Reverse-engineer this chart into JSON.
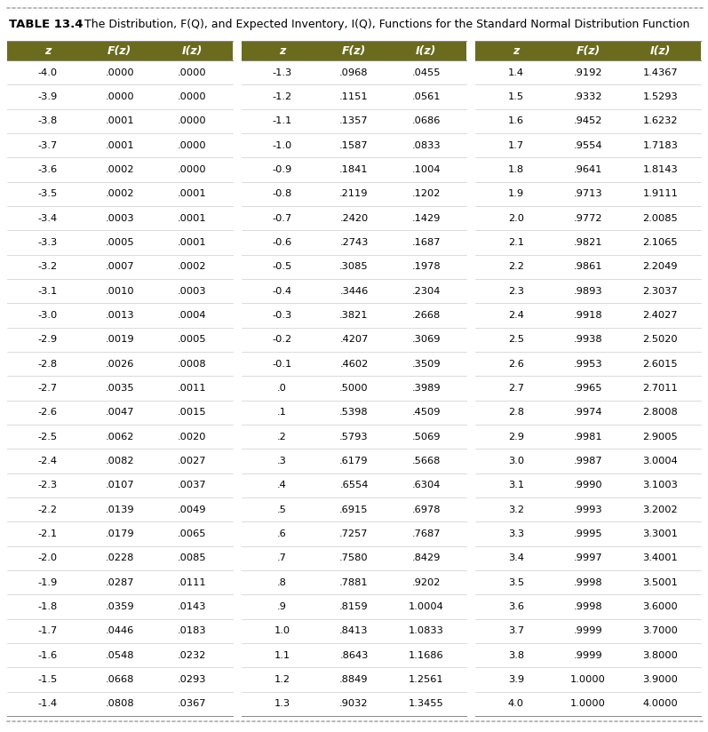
{
  "title_prefix": "TABLE 13.4",
  "title_text": "The Distribution, F(Q), and Expected Inventory, I(Q), Functions for the Standard Normal Distribution Function",
  "header_bg": "#6b6b1e",
  "header_text_color": "#ffffff",
  "col_headers": [
    "z",
    "F(z)",
    "I(z)"
  ],
  "table_data": [
    [
      [
        "-4.0",
        ".0000",
        ".0000"
      ],
      [
        "-3.9",
        ".0000",
        ".0000"
      ],
      [
        "-3.8",
        ".0001",
        ".0000"
      ],
      [
        "-3.7",
        ".0001",
        ".0000"
      ],
      [
        "-3.6",
        ".0002",
        ".0000"
      ],
      [
        "-3.5",
        ".0002",
        ".0001"
      ],
      [
        "-3.4",
        ".0003",
        ".0001"
      ],
      [
        "-3.3",
        ".0005",
        ".0001"
      ],
      [
        "-3.2",
        ".0007",
        ".0002"
      ],
      [
        "-3.1",
        ".0010",
        ".0003"
      ],
      [
        "-3.0",
        ".0013",
        ".0004"
      ],
      [
        "-2.9",
        ".0019",
        ".0005"
      ],
      [
        "-2.8",
        ".0026",
        ".0008"
      ],
      [
        "-2.7",
        ".0035",
        ".0011"
      ],
      [
        "-2.6",
        ".0047",
        ".0015"
      ],
      [
        "-2.5",
        ".0062",
        ".0020"
      ],
      [
        "-2.4",
        ".0082",
        ".0027"
      ],
      [
        "-2.3",
        ".0107",
        ".0037"
      ],
      [
        "-2.2",
        ".0139",
        ".0049"
      ],
      [
        "-2.1",
        ".0179",
        ".0065"
      ],
      [
        "-2.0",
        ".0228",
        ".0085"
      ],
      [
        "-1.9",
        ".0287",
        ".0111"
      ],
      [
        "-1.8",
        ".0359",
        ".0143"
      ],
      [
        "-1.7",
        ".0446",
        ".0183"
      ],
      [
        "-1.6",
        ".0548",
        ".0232"
      ],
      [
        "-1.5",
        ".0668",
        ".0293"
      ],
      [
        "-1.4",
        ".0808",
        ".0367"
      ]
    ],
    [
      [
        "-1.3",
        ".0968",
        ".0455"
      ],
      [
        "-1.2",
        ".1151",
        ".0561"
      ],
      [
        "-1.1",
        ".1357",
        ".0686"
      ],
      [
        "-1.0",
        ".1587",
        ".0833"
      ],
      [
        "-0.9",
        ".1841",
        ".1004"
      ],
      [
        "-0.8",
        ".2119",
        ".1202"
      ],
      [
        "-0.7",
        ".2420",
        ".1429"
      ],
      [
        "-0.6",
        ".2743",
        ".1687"
      ],
      [
        "-0.5",
        ".3085",
        ".1978"
      ],
      [
        "-0.4",
        ".3446",
        ".2304"
      ],
      [
        "-0.3",
        ".3821",
        ".2668"
      ],
      [
        "-0.2",
        ".4207",
        ".3069"
      ],
      [
        "-0.1",
        ".4602",
        ".3509"
      ],
      [
        ".0",
        ".5000",
        ".3989"
      ],
      [
        ".1",
        ".5398",
        ".4509"
      ],
      [
        ".2",
        ".5793",
        ".5069"
      ],
      [
        ".3",
        ".6179",
        ".5668"
      ],
      [
        ".4",
        ".6554",
        ".6304"
      ],
      [
        ".5",
        ".6915",
        ".6978"
      ],
      [
        ".6",
        ".7257",
        ".7687"
      ],
      [
        ".7",
        ".7580",
        ".8429"
      ],
      [
        ".8",
        ".7881",
        ".9202"
      ],
      [
        ".9",
        ".8159",
        "1.0004"
      ],
      [
        "1.0",
        ".8413",
        "1.0833"
      ],
      [
        "1.1",
        ".8643",
        "1.1686"
      ],
      [
        "1.2",
        ".8849",
        "1.2561"
      ],
      [
        "1.3",
        ".9032",
        "1.3455"
      ]
    ],
    [
      [
        "1.4",
        ".9192",
        "1.4367"
      ],
      [
        "1.5",
        ".9332",
        "1.5293"
      ],
      [
        "1.6",
        ".9452",
        "1.6232"
      ],
      [
        "1.7",
        ".9554",
        "1.7183"
      ],
      [
        "1.8",
        ".9641",
        "1.8143"
      ],
      [
        "1.9",
        ".9713",
        "1.9111"
      ],
      [
        "2.0",
        ".9772",
        "2.0085"
      ],
      [
        "2.1",
        ".9821",
        "2.1065"
      ],
      [
        "2.2",
        ".9861",
        "2.2049"
      ],
      [
        "2.3",
        ".9893",
        "2.3037"
      ],
      [
        "2.4",
        ".9918",
        "2.4027"
      ],
      [
        "2.5",
        ".9938",
        "2.5020"
      ],
      [
        "2.6",
        ".9953",
        "2.6015"
      ],
      [
        "2.7",
        ".9965",
        "2.7011"
      ],
      [
        "2.8",
        ".9974",
        "2.8008"
      ],
      [
        "2.9",
        ".9981",
        "2.9005"
      ],
      [
        "3.0",
        ".9987",
        "3.0004"
      ],
      [
        "3.1",
        ".9990",
        "3.1003"
      ],
      [
        "3.2",
        ".9993",
        "3.2002"
      ],
      [
        "3.3",
        ".9995",
        "3.3001"
      ],
      [
        "3.4",
        ".9997",
        "3.4001"
      ],
      [
        "3.5",
        ".9998",
        "3.5001"
      ],
      [
        "3.6",
        ".9998",
        "3.6000"
      ],
      [
        "3.7",
        ".9999",
        "3.7000"
      ],
      [
        "3.8",
        ".9999",
        "3.8000"
      ],
      [
        "3.9",
        "1.0000",
        "3.9000"
      ],
      [
        "4.0",
        "1.0000",
        "4.0000"
      ]
    ]
  ]
}
